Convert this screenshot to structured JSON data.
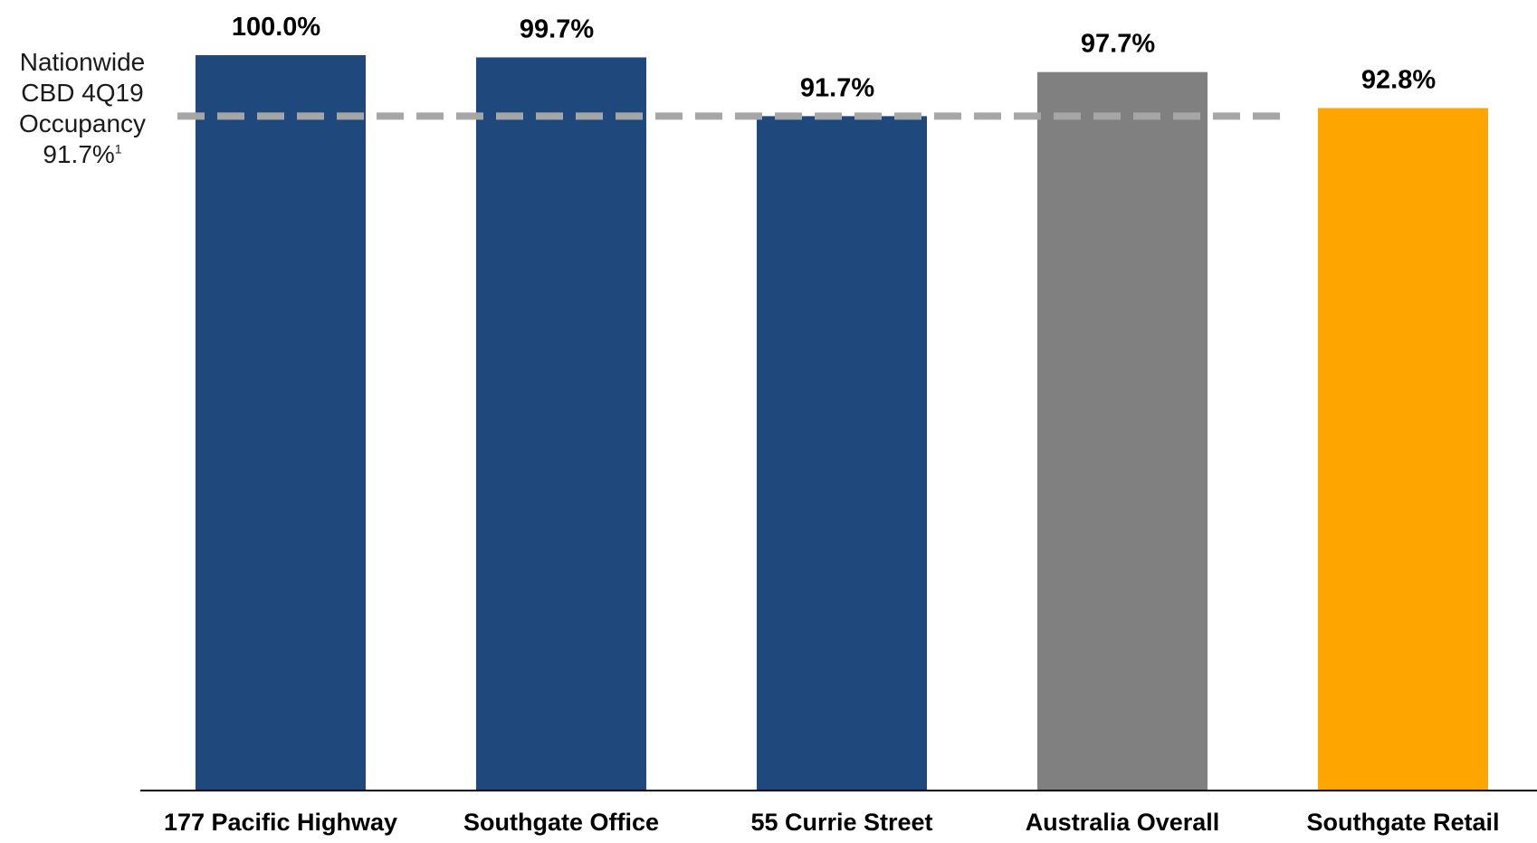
{
  "chart_data": {
    "type": "bar",
    "categories": [
      "177 Pacific Highway",
      "Southgate Office",
      "55 Currie Street",
      "Australia Overall",
      "Southgate Retail"
    ],
    "values": [
      100.0,
      99.7,
      91.7,
      97.7,
      92.8
    ],
    "data_labels": [
      "100.0%",
      "99.7%",
      "91.7%",
      "97.7%",
      "92.8%"
    ],
    "colors": [
      "#1f497d",
      "#1f497d",
      "#1f497d",
      "#808080",
      "#ffa500"
    ],
    "ylim": [
      0,
      100
    ],
    "grid": false,
    "reference_line": {
      "value": 91.7,
      "color": "#a6a6a6",
      "style": "dashed",
      "label_lines": [
        "Nationwide",
        "CBD 4Q19",
        "Occupancy",
        "91.7%"
      ],
      "footnote": "1"
    }
  }
}
